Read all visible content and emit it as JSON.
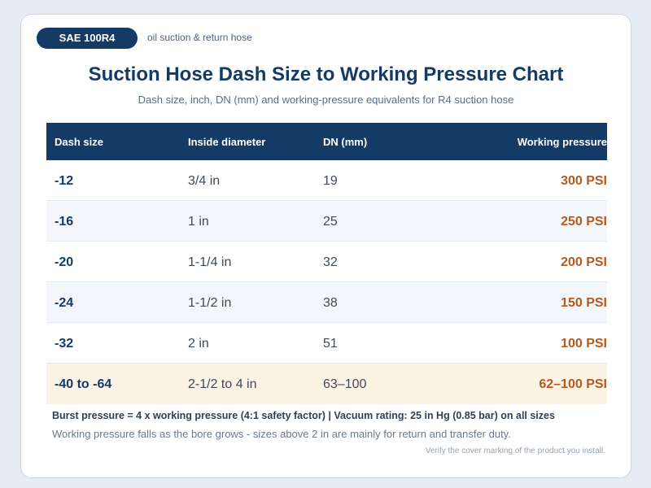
{
  "badge": {
    "label": "SAE 100R4",
    "caption": "oil suction & return hose"
  },
  "title": "Suction Hose Dash Size to Working Pressure Chart",
  "subtitle": "Dash size, inch, DN (mm) and working-pressure equivalents for R4 suction hose",
  "table": {
    "headers": [
      "Dash size",
      "Inside diameter",
      "DN (mm)",
      "Working pressure"
    ],
    "rows": [
      {
        "dash": "-12",
        "id": "3/4 in",
        "dn": "19",
        "wp": "300 PSI"
      },
      {
        "dash": "-16",
        "id": "1 in",
        "dn": "25",
        "wp": "250 PSI"
      },
      {
        "dash": "-20",
        "id": "1-1/4 in",
        "dn": "32",
        "wp": "200 PSI"
      },
      {
        "dash": "-24",
        "id": "1-1/2 in",
        "dn": "38",
        "wp": "150 PSI"
      },
      {
        "dash": "-32",
        "id": "2 in",
        "dn": "51",
        "wp": "100 PSI"
      },
      {
        "dash": "-40 to -64",
        "id": "2-1/2 to 4 in",
        "dn": "63–100",
        "wp": "62–100 PSI"
      }
    ]
  },
  "notes": {
    "burst": "Burst pressure = 4 x working pressure (4:1 safety factor)  |  Vacuum rating: 25 in Hg (0.85 bar) on all sizes",
    "bore": "Working pressure falls as the bore grows - sizes above 2 in are mainly for return and transfer duty.",
    "verify": "Verify the cover marking of the product you install."
  },
  "colors": {
    "primary": "#143a66",
    "accent": "#b25a1f",
    "highlight_row": "#fdf3e5"
  }
}
